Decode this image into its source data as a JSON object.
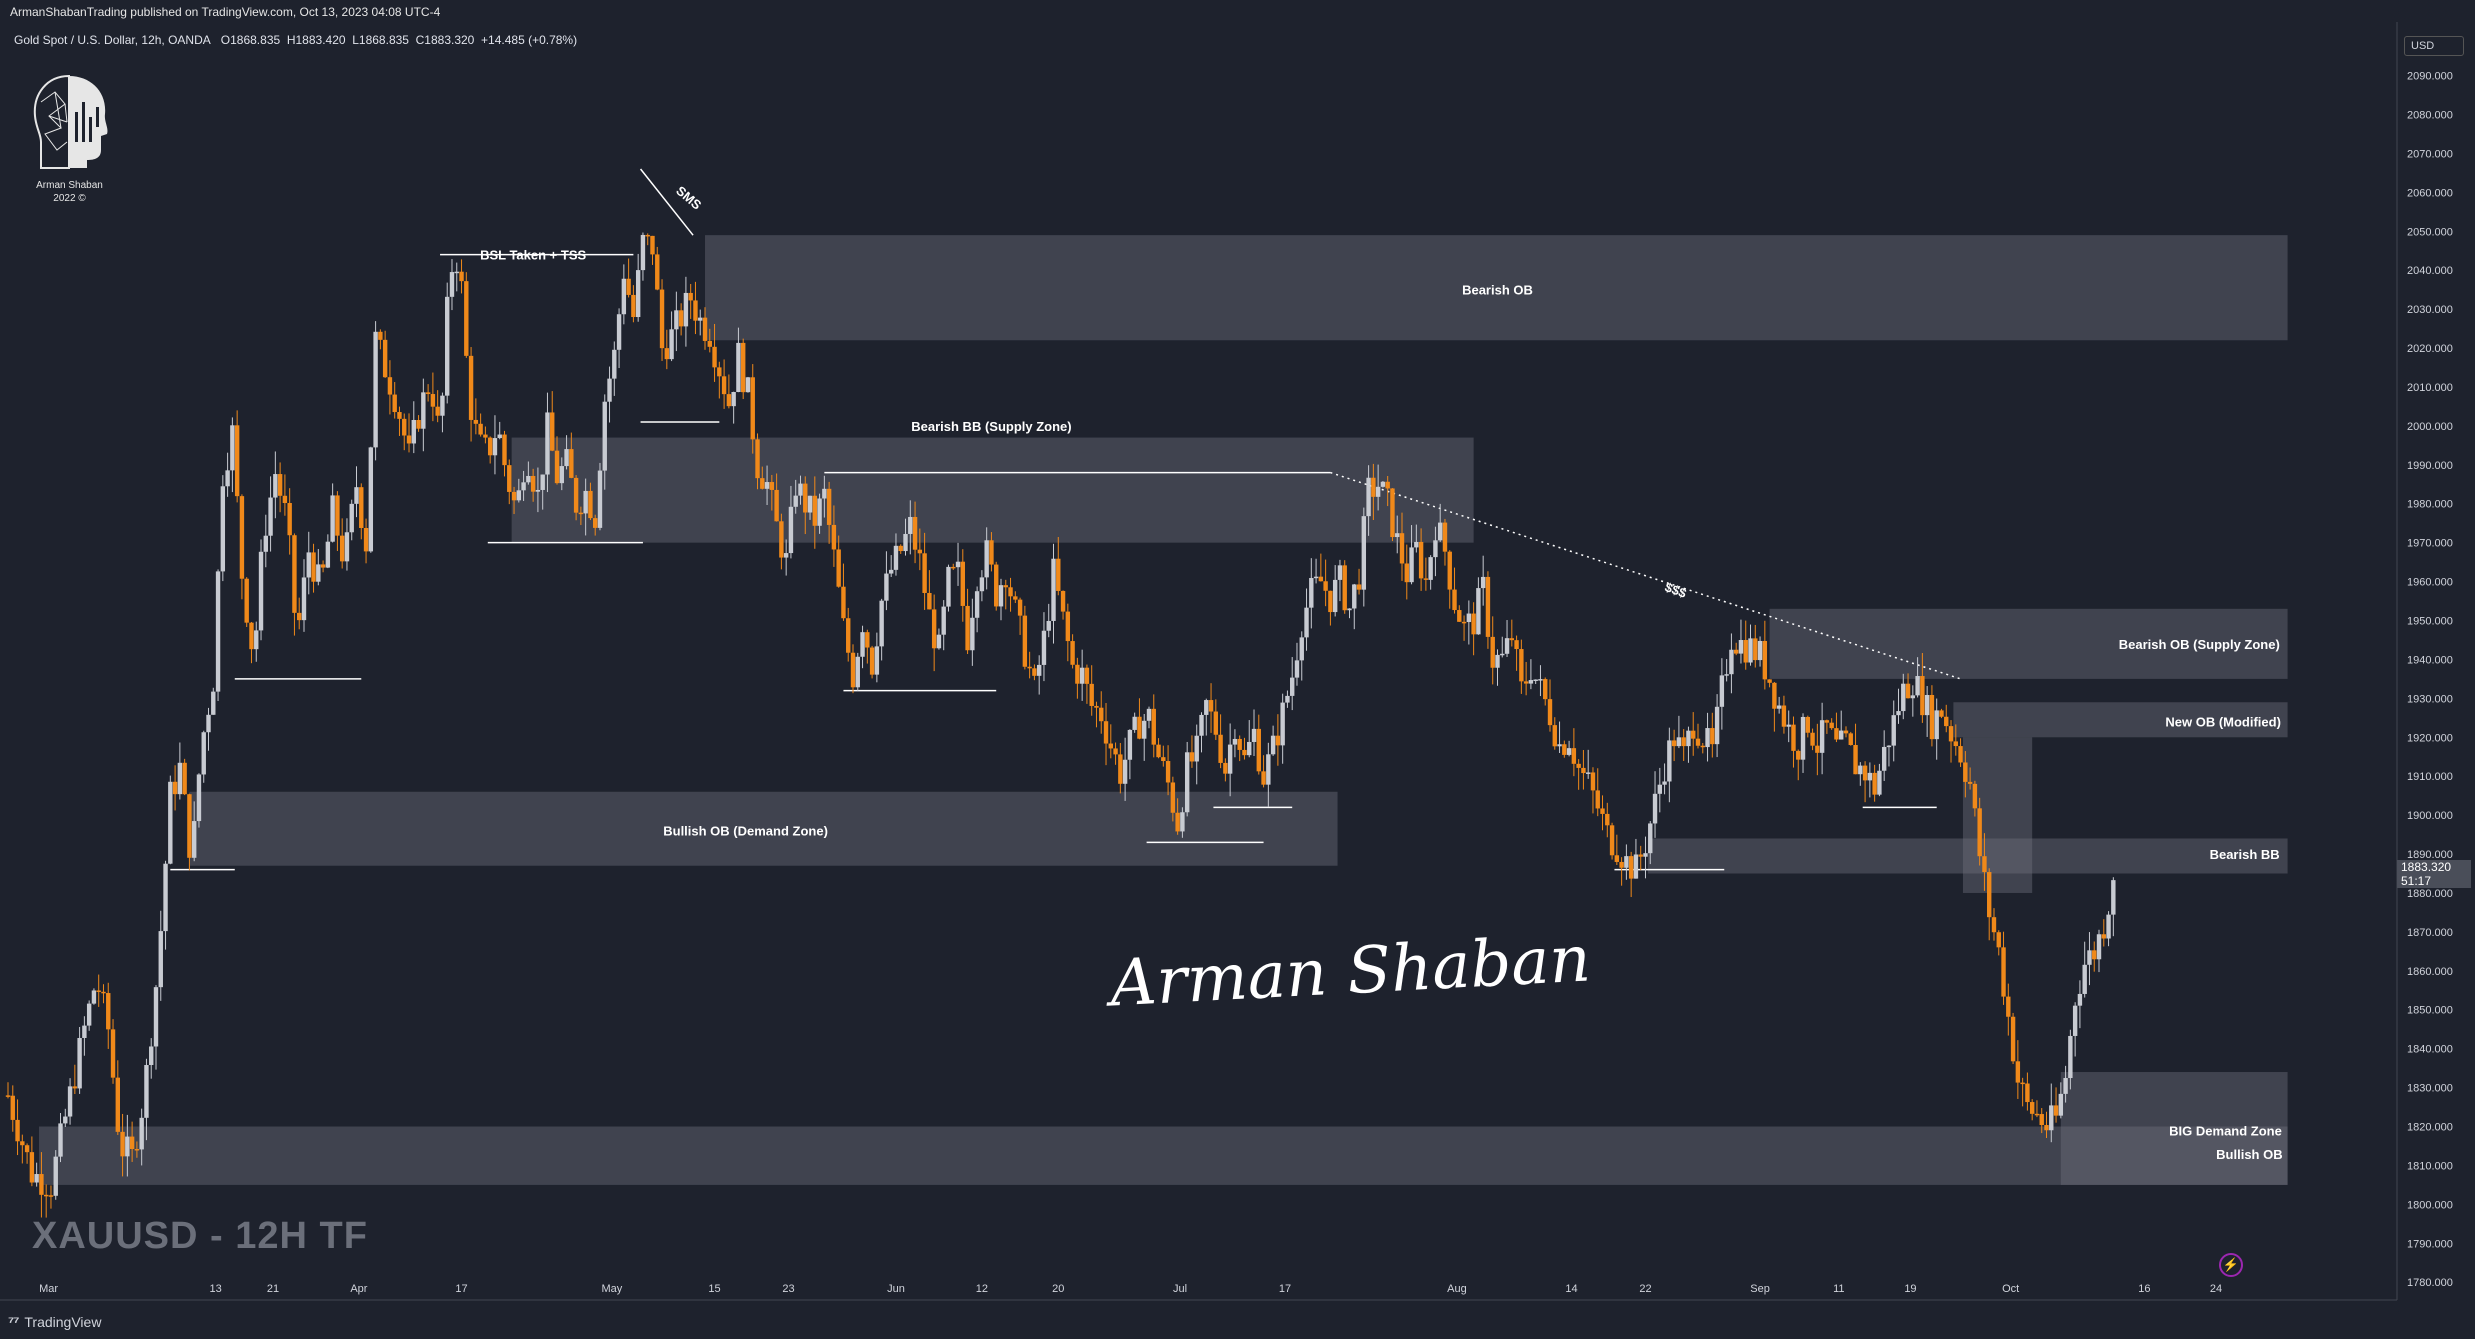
{
  "header": {
    "publisher": "ArmanShabanTrading published on TradingView.com, Oct 13, 2023 04:08 UTC-4",
    "symbol_desc": "Gold Spot / U.S. Dollar, 12h, OANDA",
    "open": "O1868.835",
    "high": "H1883.420",
    "low": "L1868.835",
    "close": "C1883.320",
    "change": "+14.485 (+0.78%)"
  },
  "branding": {
    "logo_line1": "Arman Shaban",
    "logo_line2": "2022 ©",
    "signature": "Arman Shaban",
    "chart_tag": "XAUUSD - 12H TF",
    "footer": "TradingView",
    "footer_icon": "tradingview-logo-icon"
  },
  "axis": {
    "currency": "USD",
    "current_price": "1883.320",
    "countdown": "51:17"
  },
  "colors": {
    "background": "#1e222d",
    "bull_candle": "#c8cbd2",
    "bear_candle": "#f0891a",
    "zone": "#6f737e",
    "accent_icon": "#9c27b0"
  },
  "chart_data": {
    "type": "candlestick",
    "title": "XAUUSD - 12H TF",
    "symbol": "Gold Spot / U.S. Dollar",
    "timeframe": "12h",
    "ylim": [
      1778,
      2094
    ],
    "y_ticks": [
      2090,
      2080,
      2070,
      2060,
      2050,
      2040,
      2030,
      2020,
      2010,
      2000,
      1990,
      1980,
      1970,
      1960,
      1950,
      1940,
      1930,
      1920,
      1910,
      1900,
      1890,
      1880,
      1870,
      1860,
      1850,
      1840,
      1830,
      1820,
      1810,
      1800,
      1790,
      1780
    ],
    "x_ticks": [
      "Mar",
      "13",
      "21",
      "Apr",
      "17",
      "May",
      "15",
      "23",
      "Jun",
      "12",
      "20",
      "Jul",
      "17",
      "Aug",
      "14",
      "22",
      "Sep",
      "11",
      "19",
      "Oct",
      "16",
      "24"
    ],
    "x_tick_pos": [
      0.017,
      0.087,
      0.111,
      0.147,
      0.19,
      0.253,
      0.296,
      0.327,
      0.372,
      0.408,
      0.44,
      0.491,
      0.535,
      0.607,
      0.655,
      0.686,
      0.734,
      0.767,
      0.797,
      0.839,
      0.895,
      0.925
    ],
    "path": [
      [
        0.0,
        1828
      ],
      [
        0.01,
        1808
      ],
      [
        0.018,
        1805
      ],
      [
        0.025,
        1825
      ],
      [
        0.032,
        1845
      ],
      [
        0.037,
        1858
      ],
      [
        0.042,
        1845
      ],
      [
        0.047,
        1815
      ],
      [
        0.052,
        1812
      ],
      [
        0.057,
        1828
      ],
      [
        0.063,
        1862
      ],
      [
        0.068,
        1905
      ],
      [
        0.072,
        1912
      ],
      [
        0.077,
        1888
      ],
      [
        0.081,
        1918
      ],
      [
        0.086,
        1935
      ],
      [
        0.09,
        1988
      ],
      [
        0.094,
        1998
      ],
      [
        0.098,
        1962
      ],
      [
        0.103,
        1940
      ],
      [
        0.107,
        1972
      ],
      [
        0.112,
        1988
      ],
      [
        0.117,
        1975
      ],
      [
        0.121,
        1945
      ],
      [
        0.126,
        1968
      ],
      [
        0.131,
        1958
      ],
      [
        0.136,
        1978
      ],
      [
        0.141,
        1965
      ],
      [
        0.146,
        1985
      ],
      [
        0.15,
        1970
      ],
      [
        0.154,
        2022
      ],
      [
        0.158,
        2015
      ],
      [
        0.163,
        2006
      ],
      [
        0.168,
        1992
      ],
      [
        0.172,
        2003
      ],
      [
        0.177,
        2012
      ],
      [
        0.181,
        1996
      ],
      [
        0.185,
        2040
      ],
      [
        0.189,
        2044
      ],
      [
        0.193,
        2008
      ],
      [
        0.197,
        1995
      ],
      [
        0.201,
        1993
      ],
      [
        0.205,
        2000
      ],
      [
        0.209,
        1987
      ],
      [
        0.213,
        1978
      ],
      [
        0.217,
        1994
      ],
      [
        0.222,
        1982
      ],
      [
        0.226,
        1999
      ],
      [
        0.23,
        1987
      ],
      [
        0.234,
        1990
      ],
      [
        0.238,
        1980
      ],
      [
        0.242,
        1983
      ],
      [
        0.246,
        1977
      ],
      [
        0.25,
        2007
      ],
      [
        0.254,
        2018
      ],
      [
        0.258,
        2040
      ],
      [
        0.262,
        2028
      ],
      [
        0.266,
        2047
      ],
      [
        0.27,
        2046
      ],
      [
        0.274,
        2020
      ],
      [
        0.278,
        2023
      ],
      [
        0.282,
        2028
      ],
      [
        0.286,
        2033
      ],
      [
        0.29,
        2027
      ],
      [
        0.294,
        2024
      ],
      [
        0.298,
        2015
      ],
      [
        0.302,
        2006
      ],
      [
        0.306,
        2018
      ],
      [
        0.31,
        2008
      ],
      [
        0.314,
        1990
      ],
      [
        0.318,
        1985
      ],
      [
        0.322,
        1974
      ],
      [
        0.326,
        1965
      ],
      [
        0.33,
        1985
      ],
      [
        0.334,
        1980
      ],
      [
        0.338,
        1976
      ],
      [
        0.342,
        1982
      ],
      [
        0.346,
        1966
      ],
      [
        0.35,
        1948
      ],
      [
        0.354,
        1936
      ],
      [
        0.358,
        1950
      ],
      [
        0.362,
        1939
      ],
      [
        0.366,
        1955
      ],
      [
        0.37,
        1963
      ],
      [
        0.374,
        1968
      ],
      [
        0.378,
        1974
      ],
      [
        0.382,
        1965
      ],
      [
        0.386,
        1951
      ],
      [
        0.39,
        1942
      ],
      [
        0.394,
        1960
      ],
      [
        0.398,
        1962
      ],
      [
        0.402,
        1946
      ],
      [
        0.406,
        1962
      ],
      [
        0.41,
        1967
      ],
      [
        0.414,
        1957
      ],
      [
        0.418,
        1963
      ],
      [
        0.422,
        1952
      ],
      [
        0.426,
        1942
      ],
      [
        0.43,
        1932
      ],
      [
        0.434,
        1945
      ],
      [
        0.438,
        1962
      ],
      [
        0.442,
        1950
      ],
      [
        0.446,
        1938
      ],
      [
        0.45,
        1936
      ],
      [
        0.454,
        1928
      ],
      [
        0.458,
        1926
      ],
      [
        0.462,
        1918
      ],
      [
        0.466,
        1911
      ],
      [
        0.47,
        1918
      ],
      [
        0.474,
        1924
      ],
      [
        0.478,
        1925
      ],
      [
        0.482,
        1915
      ],
      [
        0.486,
        1908
      ],
      [
        0.49,
        1898
      ],
      [
        0.494,
        1912
      ],
      [
        0.498,
        1916
      ],
      [
        0.502,
        1928
      ],
      [
        0.506,
        1922
      ],
      [
        0.51,
        1912
      ],
      [
        0.514,
        1924
      ],
      [
        0.518,
        1914
      ],
      [
        0.522,
        1921
      ],
      [
        0.526,
        1910
      ],
      [
        0.53,
        1917
      ],
      [
        0.534,
        1926
      ],
      [
        0.538,
        1936
      ],
      [
        0.542,
        1950
      ],
      [
        0.546,
        1957
      ],
      [
        0.55,
        1960
      ],
      [
        0.554,
        1956
      ],
      [
        0.558,
        1960
      ],
      [
        0.562,
        1953
      ],
      [
        0.566,
        1962
      ],
      [
        0.57,
        1983
      ],
      [
        0.574,
        1985
      ],
      [
        0.578,
        1980
      ],
      [
        0.582,
        1970
      ],
      [
        0.586,
        1962
      ],
      [
        0.59,
        1968
      ],
      [
        0.594,
        1960
      ],
      [
        0.598,
        1975
      ],
      [
        0.602,
        1968
      ],
      [
        0.606,
        1955
      ],
      [
        0.61,
        1948
      ],
      [
        0.614,
        1950
      ],
      [
        0.618,
        1958
      ],
      [
        0.622,
        1940
      ],
      [
        0.626,
        1940
      ],
      [
        0.63,
        1946
      ],
      [
        0.634,
        1932
      ],
      [
        0.638,
        1938
      ],
      [
        0.642,
        1932
      ],
      [
        0.646,
        1926
      ],
      [
        0.65,
        1918
      ],
      [
        0.654,
        1920
      ],
      [
        0.658,
        1912
      ],
      [
        0.662,
        1908
      ],
      [
        0.666,
        1902
      ],
      [
        0.67,
        1895
      ],
      [
        0.674,
        1892
      ],
      [
        0.678,
        1888
      ],
      [
        0.682,
        1886
      ],
      [
        0.686,
        1893
      ],
      [
        0.69,
        1903
      ],
      [
        0.694,
        1913
      ],
      [
        0.698,
        1920
      ],
      [
        0.702,
        1915
      ],
      [
        0.706,
        1924
      ],
      [
        0.71,
        1920
      ],
      [
        0.714,
        1916
      ],
      [
        0.718,
        1932
      ],
      [
        0.722,
        1946
      ],
      [
        0.726,
        1944
      ],
      [
        0.73,
        1943
      ],
      [
        0.734,
        1941
      ],
      [
        0.738,
        1935
      ],
      [
        0.742,
        1928
      ],
      [
        0.746,
        1922
      ],
      [
        0.75,
        1918
      ],
      [
        0.754,
        1924
      ],
      [
        0.758,
        1918
      ],
      [
        0.762,
        1922
      ],
      [
        0.766,
        1917
      ],
      [
        0.77,
        1918
      ],
      [
        0.774,
        1913
      ],
      [
        0.778,
        1911
      ],
      [
        0.782,
        1907
      ],
      [
        0.786,
        1916
      ],
      [
        0.79,
        1924
      ],
      [
        0.794,
        1932
      ],
      [
        0.798,
        1935
      ],
      [
        0.802,
        1930
      ],
      [
        0.806,
        1924
      ],
      [
        0.81,
        1927
      ],
      [
        0.814,
        1921
      ],
      [
        0.818,
        1916
      ],
      [
        0.822,
        1908
      ],
      [
        0.826,
        1890
      ],
      [
        0.83,
        1875
      ],
      [
        0.834,
        1865
      ],
      [
        0.838,
        1848
      ],
      [
        0.842,
        1832
      ],
      [
        0.846,
        1825
      ],
      [
        0.85,
        1823
      ],
      [
        0.854,
        1820
      ],
      [
        0.858,
        1822
      ],
      [
        0.862,
        1833
      ],
      [
        0.866,
        1853
      ],
      [
        0.87,
        1862
      ],
      [
        0.874,
        1865
      ],
      [
        0.878,
        1872
      ],
      [
        0.882,
        1883
      ]
    ],
    "zones": [
      {
        "label": "Bearish OB",
        "y0": 2022,
        "y1": 2049,
        "x0": 0.292,
        "x1": 0.955,
        "label_x": 0.624,
        "label_y": 2035
      },
      {
        "label": "Bearish BB (Supply Zone)",
        "y0": 1970,
        "y1": 1997,
        "x0": 0.211,
        "x1": 0.614,
        "label_x": 0.412,
        "label_y": 2000
      },
      {
        "label": "Bullish OB (Demand Zone)",
        "y0": 1887,
        "y1": 1906,
        "x0": 0.076,
        "x1": 0.557,
        "label_x": 0.309,
        "label_y": 1896
      },
      {
        "label": "Bearish OB (Supply Zone)",
        "y0": 1935,
        "y1": 1953,
        "x0": 0.738,
        "x1": 0.955,
        "label_x": 0.918,
        "label_y": 1944
      },
      {
        "label": "New OB (Modified)",
        "y0": 1920,
        "y1": 1929,
        "x0": 0.815,
        "x1": 0.955,
        "label_x": 0.928,
        "label_y": 1924
      },
      {
        "label": "Bearish BB",
        "y0": 1885,
        "y1": 1894,
        "x0": 0.687,
        "x1": 0.955,
        "label_x": 0.937,
        "label_y": 1890
      },
      {
        "label": "",
        "y0": 1880,
        "y1": 1920,
        "x0": 0.819,
        "x1": 0.848,
        "label_x": 0,
        "label_y": 0
      },
      {
        "label": "BIG Demand Zone",
        "y0": 1805,
        "y1": 1834,
        "x0": 0.86,
        "x1": 0.955,
        "label_x": 0.929,
        "label_y": 1819
      },
      {
        "label": "Bullish OB",
        "y0": 1805,
        "y1": 1820,
        "x0": 0.013,
        "x1": 0.955,
        "label_x": 0.939,
        "label_y": 1813
      }
    ],
    "annotations": [
      {
        "label": "BSL Taken + TSS",
        "x": 0.22,
        "y": 2044
      },
      {
        "label": "SMS",
        "x": 0.284,
        "y": 2059
      },
      {
        "label": "$$$",
        "x": 0.698,
        "y": 1958
      }
    ]
  }
}
